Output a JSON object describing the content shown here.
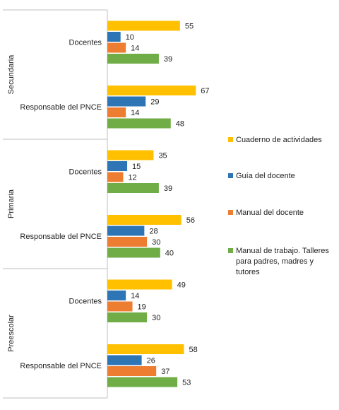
{
  "chart_data": {
    "type": "bar",
    "orientation": "horizontal",
    "groups": [
      {
        "name": "Secundaria",
        "categories": [
          {
            "name": "Docentes",
            "values": [
              55,
              10,
              14,
              39
            ]
          },
          {
            "name": "Responsable del PNCE",
            "values": [
              67,
              29,
              14,
              48
            ]
          }
        ]
      },
      {
        "name": "Primaria",
        "categories": [
          {
            "name": "Docentes",
            "values": [
              35,
              15,
              12,
              39
            ]
          },
          {
            "name": "Responsable del PNCE",
            "values": [
              56,
              28,
              30,
              40
            ]
          }
        ]
      },
      {
        "name": "Preescolar",
        "categories": [
          {
            "name": "Docentes",
            "values": [
              49,
              14,
              19,
              30
            ]
          },
          {
            "name": "Responsable del PNCE",
            "values": [
              58,
              26,
              37,
              53
            ]
          }
        ]
      }
    ],
    "series": [
      {
        "name": "Cuaderno de actividades",
        "color": "#FFC000"
      },
      {
        "name": "Guía del docente",
        "color": "#2E75B6"
      },
      {
        "name": "Manual del docente",
        "color": "#ED7D31"
      },
      {
        "name": "Manual de trabajo. Talleres para padres, madres y tutores",
        "color": "#70AD47"
      }
    ],
    "legend": "right",
    "grid": false,
    "xlim": [
      0,
      100
    ]
  }
}
